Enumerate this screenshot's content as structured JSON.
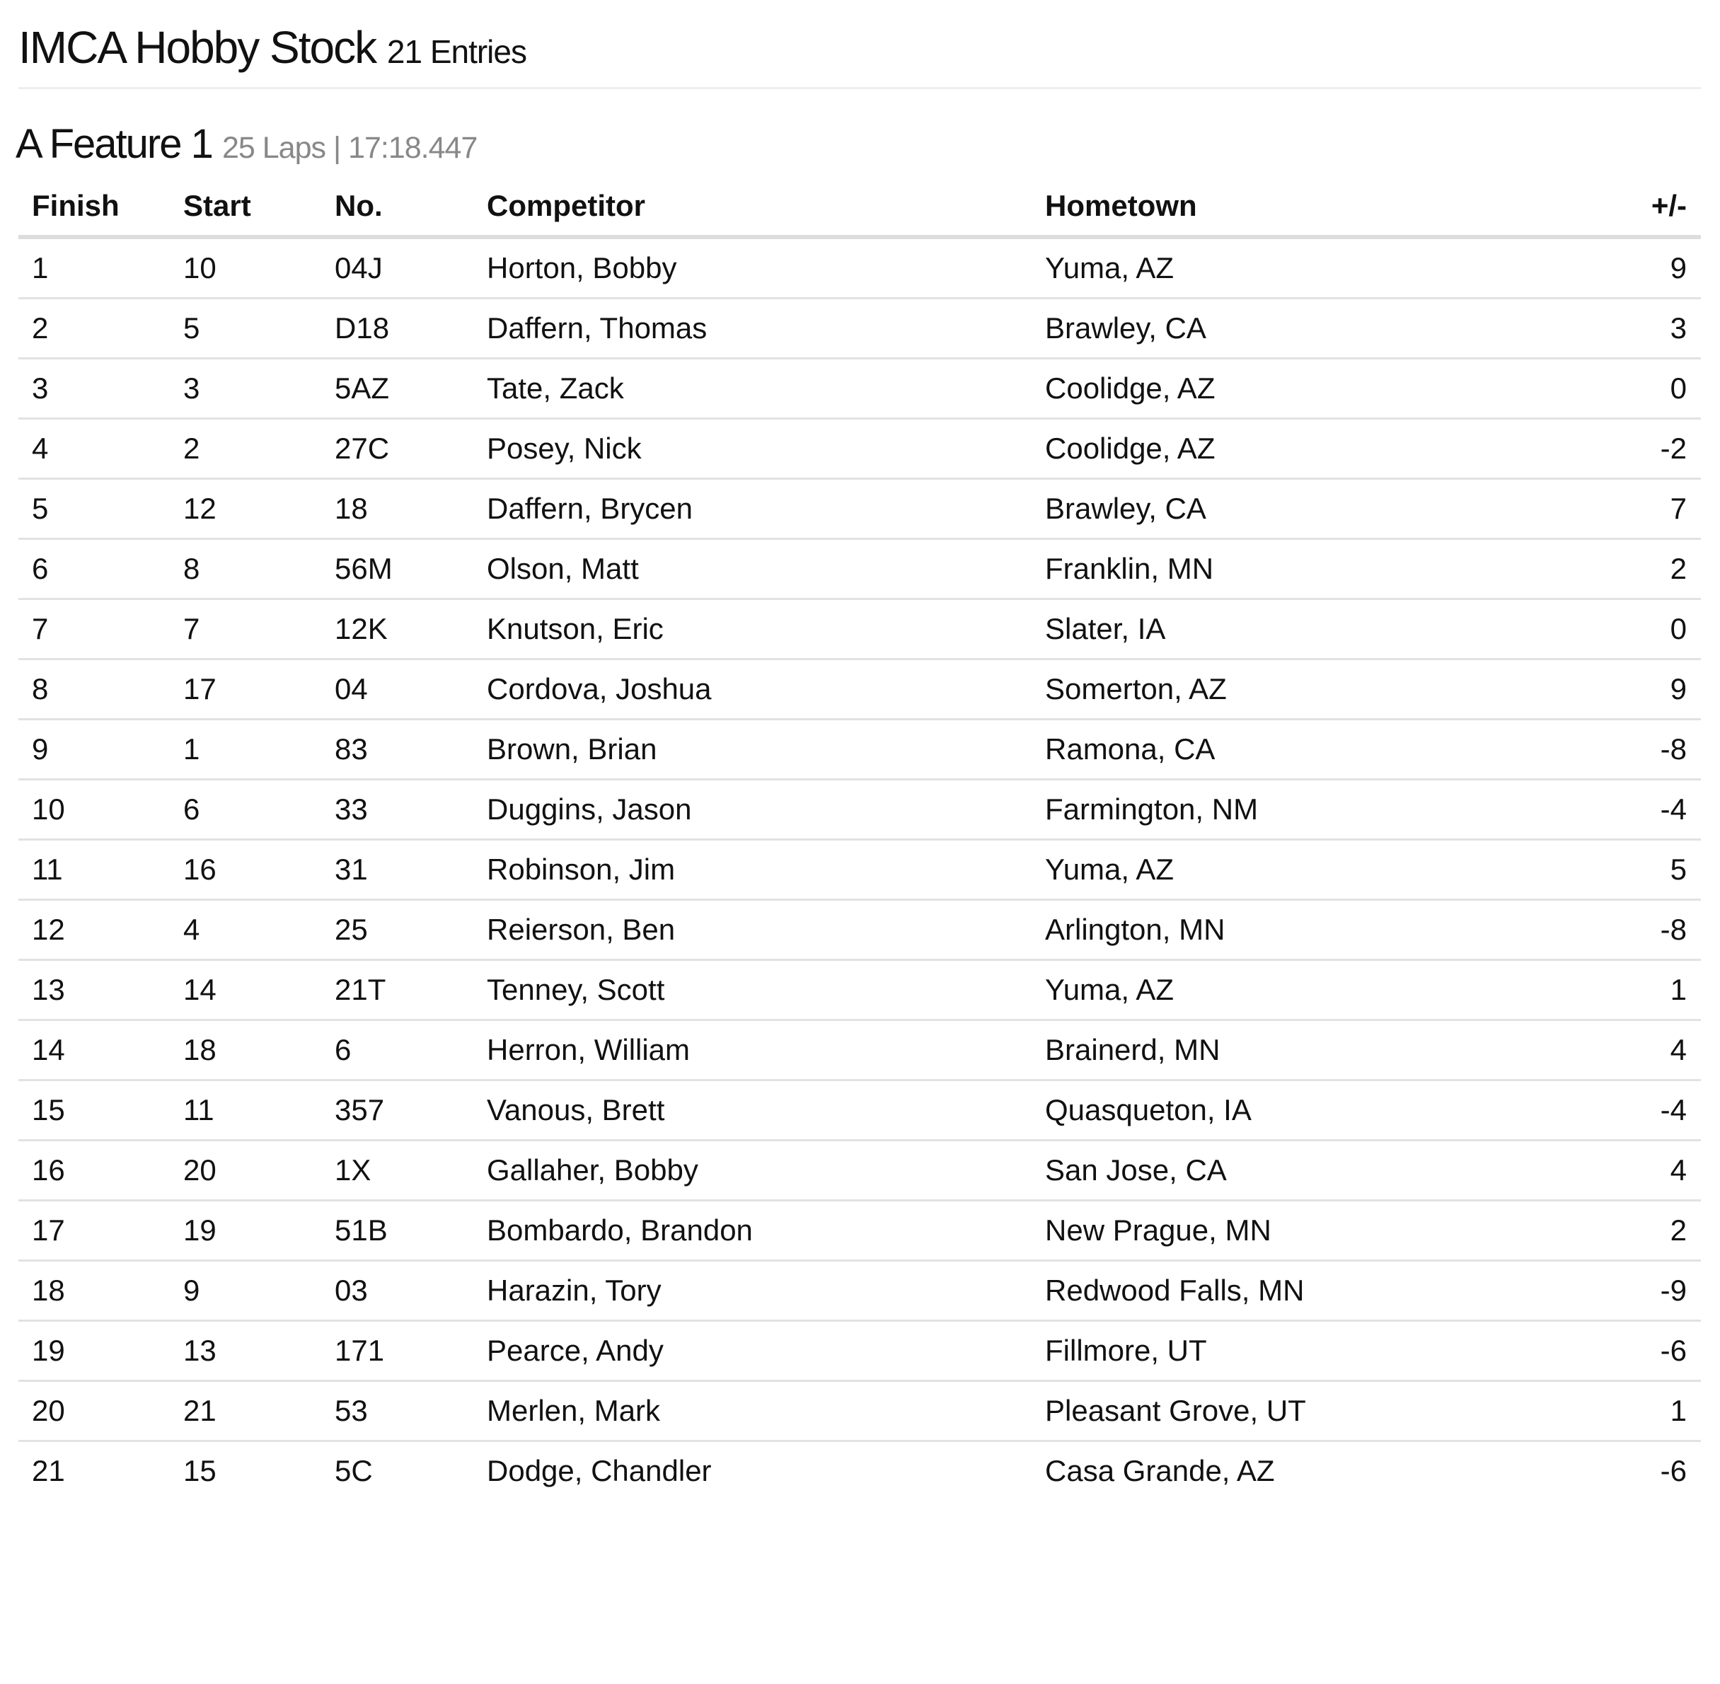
{
  "header": {
    "title": "IMCA Hobby Stock",
    "entries": "21 Entries"
  },
  "feature": {
    "title": "A Feature 1",
    "meta": "25 Laps | 17:18.447"
  },
  "table": {
    "columns": [
      "Finish",
      "Start",
      "No.",
      "Competitor",
      "Hometown",
      "+/-"
    ],
    "rows": [
      [
        "1",
        "10",
        "04J",
        "Horton, Bobby",
        "Yuma, AZ",
        "9"
      ],
      [
        "2",
        "5",
        "D18",
        "Daffern, Thomas",
        "Brawley, CA",
        "3"
      ],
      [
        "3",
        "3",
        "5AZ",
        "Tate, Zack",
        "Coolidge, AZ",
        "0"
      ],
      [
        "4",
        "2",
        "27C",
        "Posey, Nick",
        "Coolidge, AZ",
        "-2"
      ],
      [
        "5",
        "12",
        "18",
        "Daffern, Brycen",
        "Brawley, CA",
        "7"
      ],
      [
        "6",
        "8",
        "56M",
        "Olson, Matt",
        "Franklin, MN",
        "2"
      ],
      [
        "7",
        "7",
        "12K",
        "Knutson, Eric",
        "Slater, IA",
        "0"
      ],
      [
        "8",
        "17",
        "04",
        "Cordova, Joshua",
        "Somerton, AZ",
        "9"
      ],
      [
        "9",
        "1",
        "83",
        "Brown, Brian",
        "Ramona, CA",
        "-8"
      ],
      [
        "10",
        "6",
        "33",
        "Duggins, Jason",
        "Farmington, NM",
        "-4"
      ],
      [
        "11",
        "16",
        "31",
        "Robinson, Jim",
        "Yuma, AZ",
        "5"
      ],
      [
        "12",
        "4",
        "25",
        "Reierson, Ben",
        "Arlington, MN",
        "-8"
      ],
      [
        "13",
        "14",
        "21T",
        "Tenney, Scott",
        "Yuma, AZ",
        "1"
      ],
      [
        "14",
        "18",
        "6",
        "Herron, William",
        "Brainerd, MN",
        "4"
      ],
      [
        "15",
        "11",
        "357",
        "Vanous, Brett",
        "Quasqueton, IA",
        "-4"
      ],
      [
        "16",
        "20",
        "1X",
        "Gallaher, Bobby",
        "San Jose, CA",
        "4"
      ],
      [
        "17",
        "19",
        "51B",
        "Bombardo, Brandon",
        "New Prague, MN",
        "2"
      ],
      [
        "18",
        "9",
        "03",
        "Harazin, Tory",
        "Redwood Falls, MN",
        "-9"
      ],
      [
        "19",
        "13",
        "171",
        "Pearce, Andy",
        "Fillmore, UT",
        "-6"
      ],
      [
        "20",
        "21",
        "53",
        "Merlen, Mark",
        "Pleasant Grove, UT",
        "1"
      ],
      [
        "21",
        "15",
        "5C",
        "Dodge, Chandler",
        "Casa Grande, AZ",
        "-6"
      ]
    ]
  }
}
